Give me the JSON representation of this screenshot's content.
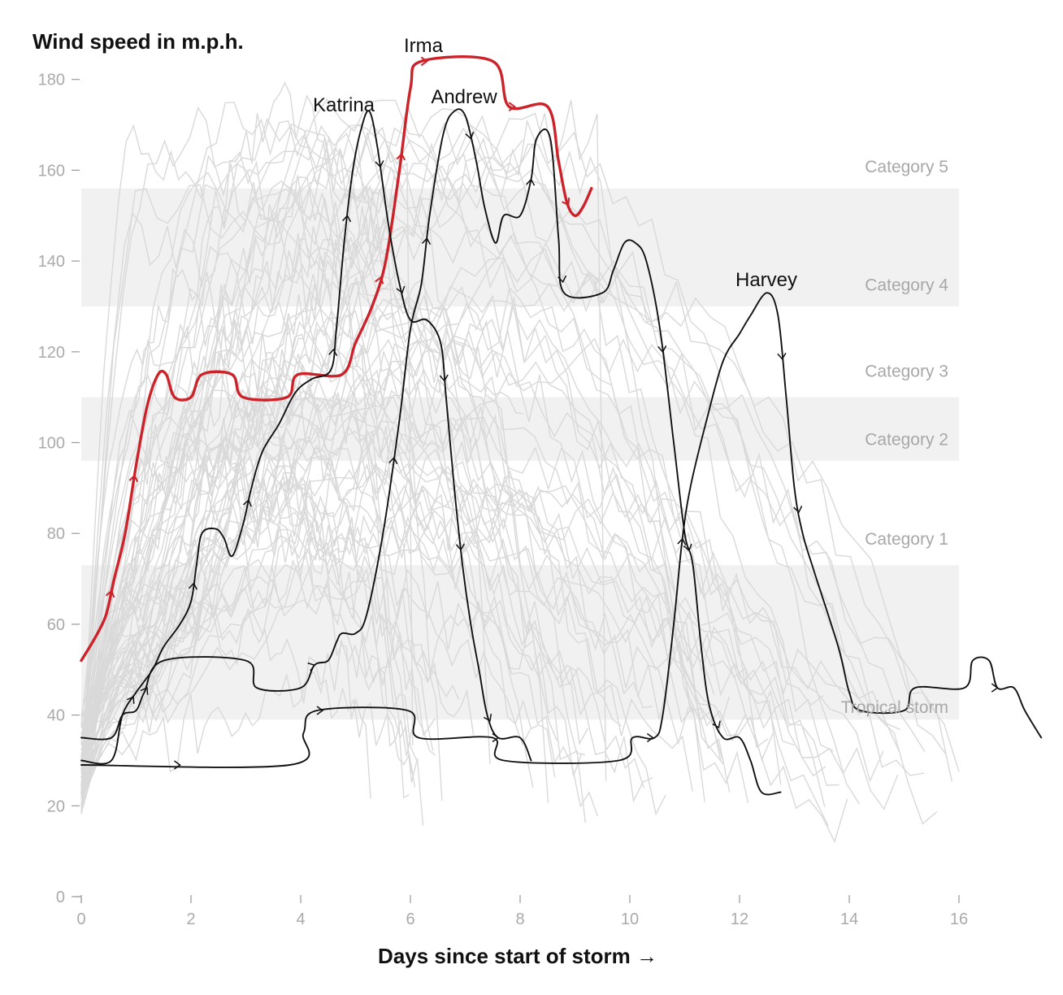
{
  "chart_data": {
    "type": "line",
    "ylabel": "Wind speed in m.p.h.",
    "xlabel": "Days since start of storm →",
    "xlim": [
      0,
      17.5
    ],
    "ylim": [
      0,
      185
    ],
    "x_ticks": [
      0,
      2,
      4,
      6,
      8,
      10,
      12,
      14,
      16
    ],
    "y_ticks": [
      0,
      20,
      40,
      60,
      80,
      100,
      120,
      140,
      160,
      180
    ],
    "grid": false,
    "bands": [
      {
        "label": "Category 5",
        "range": [
          157,
          185
        ],
        "shaded": false
      },
      {
        "label": "Category 4",
        "range": [
          130,
          156
        ],
        "shaded": true
      },
      {
        "label": "Category 3",
        "range": [
          111,
          129
        ],
        "shaded": false
      },
      {
        "label": "Category 2",
        "range": [
          96,
          110
        ],
        "shaded": true
      },
      {
        "label": "Category 1",
        "range": [
          74,
          95
        ],
        "shaded": false
      },
      {
        "label": "Tropical storm",
        "range": [
          39,
          73
        ],
        "shaded": true
      }
    ],
    "series": [
      {
        "name": "Irma",
        "color": "#cc2229",
        "points": [
          [
            0,
            52
          ],
          [
            0.25,
            57
          ],
          [
            0.45,
            62
          ],
          [
            0.6,
            70
          ],
          [
            0.8,
            80
          ],
          [
            1.0,
            95
          ],
          [
            1.2,
            108
          ],
          [
            1.4,
            115
          ],
          [
            1.55,
            115
          ],
          [
            1.7,
            110
          ],
          [
            2.0,
            110
          ],
          [
            2.2,
            115
          ],
          [
            2.75,
            115
          ],
          [
            2.95,
            110
          ],
          [
            3.75,
            110
          ],
          [
            3.95,
            115
          ],
          [
            4.75,
            115
          ],
          [
            5.0,
            122
          ],
          [
            5.3,
            130
          ],
          [
            5.55,
            140
          ],
          [
            5.8,
            160
          ],
          [
            6.0,
            178
          ],
          [
            6.2,
            184
          ],
          [
            7.5,
            184
          ],
          [
            7.8,
            174
          ],
          [
            8.5,
            174
          ],
          [
            8.7,
            162
          ],
          [
            8.85,
            153
          ],
          [
            9.0,
            150
          ],
          [
            9.15,
            152
          ],
          [
            9.3,
            156
          ]
        ],
        "arrows_at": [
          0.55,
          0.97,
          5.46,
          5.84,
          6.3,
          7.9,
          8.88
        ]
      },
      {
        "name": "Katrina",
        "color": "#111111",
        "points": [
          [
            0,
            35
          ],
          [
            0.55,
            35
          ],
          [
            0.75,
            40
          ],
          [
            1.0,
            41
          ],
          [
            1.15,
            45
          ],
          [
            1.5,
            52
          ],
          [
            3.0,
            52
          ],
          [
            3.2,
            46
          ],
          [
            4.0,
            46
          ],
          [
            4.25,
            51
          ],
          [
            4.5,
            52
          ],
          [
            4.65,
            56
          ],
          [
            4.75,
            58
          ],
          [
            5.0,
            58
          ],
          [
            5.2,
            62
          ],
          [
            5.5,
            80
          ],
          [
            5.8,
            105
          ],
          [
            6.0,
            125
          ],
          [
            6.2,
            135
          ],
          [
            6.35,
            150
          ],
          [
            6.6,
            168
          ],
          [
            6.8,
            173
          ],
          [
            7.0,
            172
          ],
          [
            7.2,
            162
          ],
          [
            7.35,
            152
          ],
          [
            7.55,
            144
          ],
          [
            7.7,
            150
          ],
          [
            8.0,
            150
          ],
          [
            8.2,
            158
          ],
          [
            8.3,
            167
          ],
          [
            8.55,
            167
          ],
          [
            8.7,
            145
          ],
          [
            8.8,
            133
          ],
          [
            9.5,
            133
          ],
          [
            9.7,
            138
          ],
          [
            9.9,
            144
          ],
          [
            10.1,
            144
          ],
          [
            10.3,
            140
          ],
          [
            10.55,
            125
          ],
          [
            10.8,
            100
          ],
          [
            11.0,
            80
          ],
          [
            11.15,
            73
          ],
          [
            11.3,
            55
          ],
          [
            11.45,
            42
          ],
          [
            11.7,
            35
          ],
          [
            12.0,
            35
          ],
          [
            12.2,
            30
          ],
          [
            12.4,
            23
          ],
          [
            12.75,
            23
          ]
        ],
        "arrows_at": [
          1.2,
          4.25,
          5.7,
          6.3,
          7.1,
          8.2,
          8.78,
          10.6,
          11.08,
          11.62
        ]
      },
      {
        "name": "Andrew",
        "color": "#111111",
        "points": [
          [
            0,
            29
          ],
          [
            3.8,
            29
          ],
          [
            4.05,
            36
          ],
          [
            4.3,
            41
          ],
          [
            5.95,
            41
          ],
          [
            6.15,
            35
          ],
          [
            7.5,
            35
          ],
          [
            7.7,
            30
          ],
          [
            9.8,
            30
          ],
          [
            10.05,
            35
          ],
          [
            10.45,
            35
          ],
          [
            10.6,
            40
          ],
          [
            10.8,
            60
          ],
          [
            10.95,
            78
          ],
          [
            11.1,
            90
          ],
          [
            11.4,
            105
          ],
          [
            11.7,
            118
          ],
          [
            12.0,
            124
          ],
          [
            12.2,
            128
          ],
          [
            12.5,
            133
          ],
          [
            12.7,
            128
          ],
          [
            12.85,
            110
          ],
          [
            13.0,
            90
          ],
          [
            13.15,
            80
          ],
          [
            13.35,
            72
          ],
          [
            13.8,
            55
          ],
          [
            14.0,
            45
          ],
          [
            14.2,
            41
          ],
          [
            15.0,
            41
          ],
          [
            15.2,
            46
          ],
          [
            16.1,
            46
          ],
          [
            16.25,
            52
          ],
          [
            16.55,
            52
          ],
          [
            16.7,
            46
          ],
          [
            17.0,
            46
          ],
          [
            17.2,
            41
          ],
          [
            17.5,
            35
          ]
        ],
        "arrows_at": [
          1.8,
          4.4,
          10.42,
          10.96,
          12.78,
          13.08,
          16.7
        ]
      },
      {
        "name": "Harvey",
        "color": "#111111",
        "points": [
          [
            0,
            30
          ],
          [
            0.55,
            30
          ],
          [
            0.75,
            40
          ],
          [
            1.0,
            45
          ],
          [
            1.3,
            50
          ],
          [
            1.5,
            55
          ],
          [
            1.8,
            60
          ],
          [
            2.0,
            65
          ],
          [
            2.1,
            73
          ],
          [
            2.2,
            80
          ],
          [
            2.45,
            81
          ],
          [
            2.6,
            79
          ],
          [
            2.75,
            75
          ],
          [
            2.95,
            82
          ],
          [
            3.1,
            90
          ],
          [
            3.3,
            98
          ],
          [
            3.6,
            104
          ],
          [
            3.9,
            111
          ],
          [
            4.2,
            114
          ],
          [
            4.55,
            116
          ],
          [
            4.65,
            125
          ],
          [
            4.8,
            145
          ],
          [
            4.95,
            160
          ],
          [
            5.1,
            169
          ],
          [
            5.25,
            173
          ],
          [
            5.4,
            165
          ],
          [
            5.6,
            148
          ],
          [
            5.8,
            135
          ],
          [
            6.0,
            127
          ],
          [
            6.3,
            127
          ],
          [
            6.55,
            122
          ],
          [
            6.65,
            110
          ],
          [
            6.8,
            90
          ],
          [
            6.95,
            73
          ],
          [
            7.1,
            60
          ],
          [
            7.25,
            50
          ],
          [
            7.4,
            40
          ],
          [
            7.6,
            35
          ],
          [
            8.0,
            35
          ],
          [
            8.2,
            30
          ]
        ],
        "arrows_at": [
          0.95,
          2.05,
          3.05,
          4.6,
          4.85,
          5.45,
          5.85,
          6.62,
          6.92,
          7.45,
          7.6
        ]
      }
    ]
  }
}
